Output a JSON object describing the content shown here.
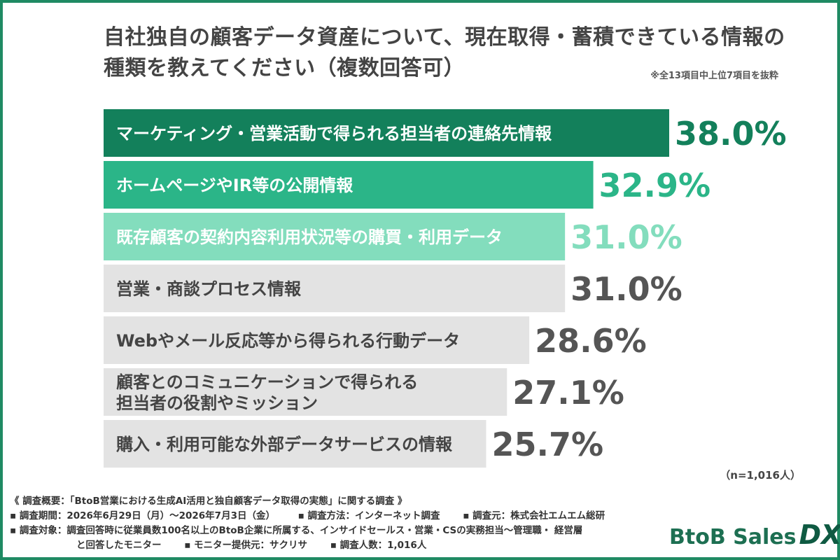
{
  "title": {
    "line1": "自社独自の顧客データ資産について、現在取得・蓄積できている情報の",
    "line2": "種類を教えてください（複数回答可）"
  },
  "note": "※全13項目中上位7項目を抜粋",
  "chart_data": {
    "type": "bar",
    "orientation": "horizontal",
    "categories": [
      [
        "マーケティング・営業活動で得られる担当者の連絡先情報"
      ],
      [
        "ホームページやIR等の公開情報"
      ],
      [
        "既存顧客の契約内容利用状況等の購買・利用データ"
      ],
      [
        "営業・商談プロセス情報"
      ],
      [
        "Webやメール反応等から得られる行動データ"
      ],
      [
        "顧客とのコミュニケーションで得られる",
        "担当者の役割やミッション"
      ],
      [
        "購入・利用可能な外部データサービスの情報"
      ]
    ],
    "values": [
      38.0,
      32.9,
      31.0,
      31.0,
      28.6,
      27.1,
      25.7
    ],
    "value_labels": [
      "38.0%",
      "32.9%",
      "31.0%",
      "31.0%",
      "28.6%",
      "27.1%",
      "25.7%"
    ],
    "bar_colors": [
      "#13805b",
      "#2bb588",
      "#83ddbd",
      "#e3e3e3",
      "#e3e3e3",
      "#e3e3e3",
      "#e3e3e3"
    ],
    "label_text_colors": [
      "#ffffff",
      "#ffffff",
      "#ffffff",
      "#444444",
      "#444444",
      "#444444",
      "#444444"
    ],
    "value_text_colors": [
      "#13805b",
      "#2bb588",
      "#83ddbd",
      "#555555",
      "#555555",
      "#555555",
      "#555555"
    ],
    "xlim": [
      0,
      38.0
    ]
  },
  "n_label": "（n=1,016人）",
  "footer": {
    "summary": "《 調査概要：「BtoB営業における生成AI活用と独自顧客データ取得の実態」に関する調査 》",
    "period": "▪ 調査期間：2026年6月29日（月）～2026年7月3日（金）",
    "method": "▪ 調査方法：インターネット調査",
    "source": "▪ 調査元：株式会社エムエム総研",
    "target": "▪ 調査対象：調査回答時に従業員数100名以上のBtoB企業に所属する、インサイドセールス・営業・CSの実務担当～管理職・ 経営層",
    "target2": "と回答したモニター",
    "provider": "▪ モニター提供元：サクリサ",
    "count": "▪ 調査人数：1,016人"
  },
  "logo": {
    "text": "BtoB Sales",
    "mark": "DX"
  }
}
